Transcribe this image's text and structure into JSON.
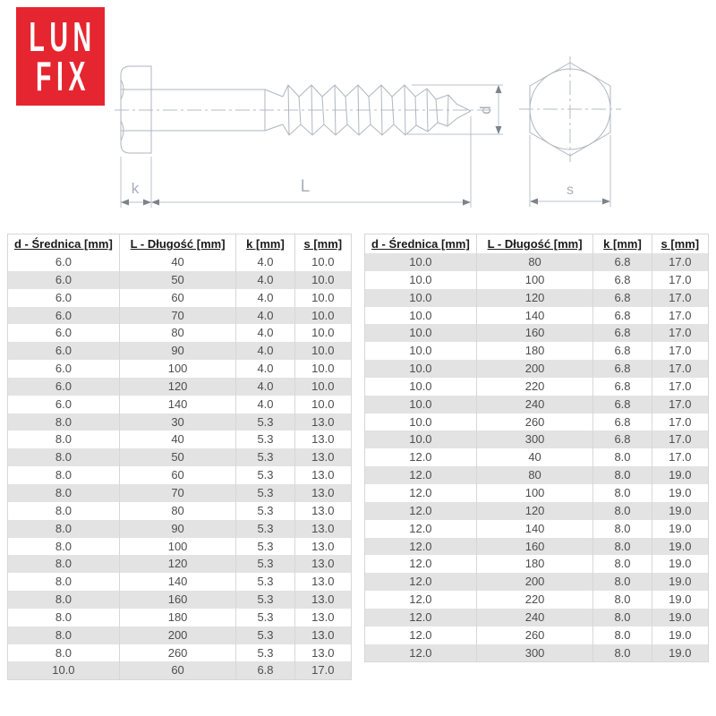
{
  "logo": {
    "line1": "LUN",
    "line2": "FIX",
    "bg_color": "#e5252f",
    "text_color": "#ffffff"
  },
  "drawing": {
    "line_color": "#b0b6bf",
    "dim_labels": {
      "k": "k",
      "L": "L",
      "d": "d",
      "s": "s"
    }
  },
  "tables": {
    "headers": [
      "d - Średnica [mm]",
      "L - Długość [mm]",
      "k [mm]",
      "s [mm]"
    ],
    "left": {
      "stripe": "even",
      "rows": [
        [
          "6.0",
          "40",
          "4.0",
          "10.0"
        ],
        [
          "6.0",
          "50",
          "4.0",
          "10.0"
        ],
        [
          "6.0",
          "60",
          "4.0",
          "10.0"
        ],
        [
          "6.0",
          "70",
          "4.0",
          "10.0"
        ],
        [
          "6.0",
          "80",
          "4.0",
          "10.0"
        ],
        [
          "6.0",
          "90",
          "4.0",
          "10.0"
        ],
        [
          "6.0",
          "100",
          "4.0",
          "10.0"
        ],
        [
          "6.0",
          "120",
          "4.0",
          "10.0"
        ],
        [
          "6.0",
          "140",
          "4.0",
          "10.0"
        ],
        [
          "8.0",
          "30",
          "5.3",
          "13.0"
        ],
        [
          "8.0",
          "40",
          "5.3",
          "13.0"
        ],
        [
          "8.0",
          "50",
          "5.3",
          "13.0"
        ],
        [
          "8.0",
          "60",
          "5.3",
          "13.0"
        ],
        [
          "8.0",
          "70",
          "5.3",
          "13.0"
        ],
        [
          "8.0",
          "80",
          "5.3",
          "13.0"
        ],
        [
          "8.0",
          "90",
          "5.3",
          "13.0"
        ],
        [
          "8.0",
          "100",
          "5.3",
          "13.0"
        ],
        [
          "8.0",
          "120",
          "5.3",
          "13.0"
        ],
        [
          "8.0",
          "140",
          "5.3",
          "13.0"
        ],
        [
          "8.0",
          "160",
          "5.3",
          "13.0"
        ],
        [
          "8.0",
          "180",
          "5.3",
          "13.0"
        ],
        [
          "8.0",
          "200",
          "5.3",
          "13.0"
        ],
        [
          "8.0",
          "260",
          "5.3",
          "13.0"
        ],
        [
          "10.0",
          "60",
          "6.8",
          "17.0"
        ]
      ]
    },
    "right": {
      "stripe": "odd",
      "rows": [
        [
          "10.0",
          "80",
          "6.8",
          "17.0"
        ],
        [
          "10.0",
          "100",
          "6.8",
          "17.0"
        ],
        [
          "10.0",
          "120",
          "6.8",
          "17.0"
        ],
        [
          "10.0",
          "140",
          "6.8",
          "17.0"
        ],
        [
          "10.0",
          "160",
          "6.8",
          "17.0"
        ],
        [
          "10.0",
          "180",
          "6.8",
          "17.0"
        ],
        [
          "10.0",
          "200",
          "6.8",
          "17.0"
        ],
        [
          "10.0",
          "220",
          "6.8",
          "17.0"
        ],
        [
          "10.0",
          "240",
          "6.8",
          "17.0"
        ],
        [
          "10.0",
          "260",
          "6.8",
          "17.0"
        ],
        [
          "10.0",
          "300",
          "6.8",
          "17.0"
        ],
        [
          "12.0",
          "40",
          "8.0",
          "17.0"
        ],
        [
          "12.0",
          "80",
          "8.0",
          "19.0"
        ],
        [
          "12.0",
          "100",
          "8.0",
          "19.0"
        ],
        [
          "12.0",
          "120",
          "8.0",
          "19.0"
        ],
        [
          "12.0",
          "140",
          "8.0",
          "19.0"
        ],
        [
          "12.0",
          "160",
          "8.0",
          "19.0"
        ],
        [
          "12.0",
          "180",
          "8.0",
          "19.0"
        ],
        [
          "12.0",
          "200",
          "8.0",
          "19.0"
        ],
        [
          "12.0",
          "220",
          "8.0",
          "19.0"
        ],
        [
          "12.0",
          "240",
          "8.0",
          "19.0"
        ],
        [
          "12.0",
          "260",
          "8.0",
          "19.0"
        ],
        [
          "12.0",
          "300",
          "8.0",
          "19.0"
        ]
      ]
    }
  }
}
